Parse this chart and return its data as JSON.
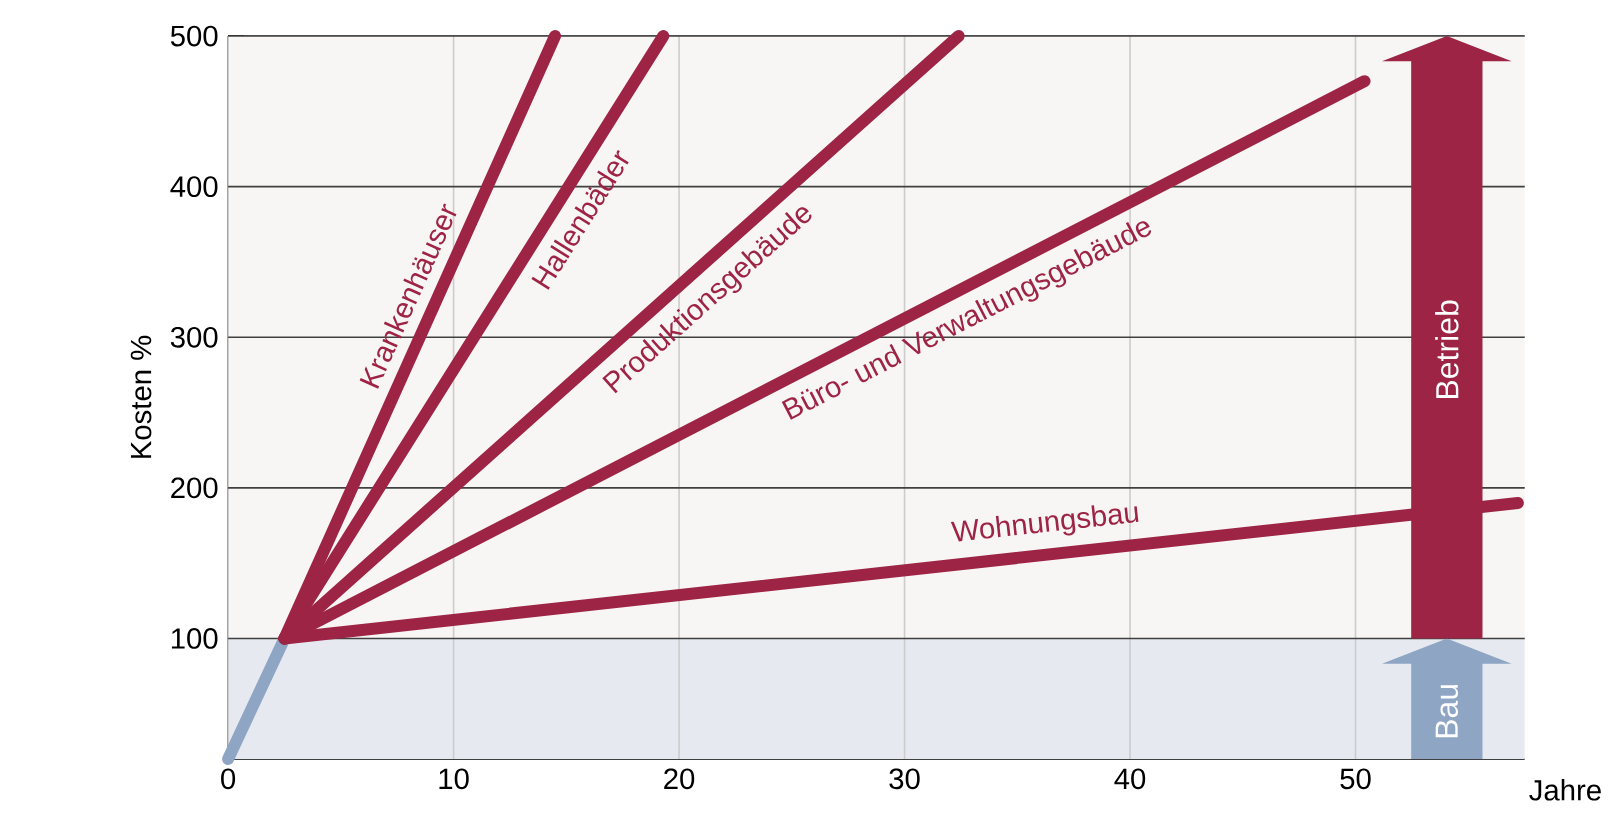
{
  "chart_data": {
    "type": "line",
    "xlabel": "Jahre",
    "ylabel": "Kosten %",
    "xlim": [
      0,
      57.5
    ],
    "ylim": [
      20,
      500
    ],
    "xticks": [
      0,
      10,
      20,
      30,
      40,
      50
    ],
    "yticks": [
      100,
      200,
      300,
      400,
      500
    ],
    "grid": true,
    "series": [
      {
        "color": "#8fa5c4",
        "x": [
          0,
          2.5
        ],
        "values": [
          20,
          100
        ]
      },
      {
        "name": "Krankenhäuser",
        "color": "#9e2445",
        "x": [
          2.5,
          14.5
        ],
        "values": [
          100,
          500
        ]
      },
      {
        "name": "Hallenbäder",
        "color": "#9e2445",
        "x": [
          2.5,
          19.3
        ],
        "values": [
          100,
          500
        ]
      },
      {
        "name": "Produktionsgebäude",
        "color": "#9e2445",
        "x": [
          2.5,
          32.4
        ],
        "values": [
          100,
          500
        ]
      },
      {
        "name": "Büro- und Verwaltungsgebäude",
        "color": "#9e2445",
        "x": [
          2.5,
          50.4
        ],
        "values": [
          100,
          470
        ]
      },
      {
        "name": "Wohnungsbau",
        "color": "#9e2445",
        "x": [
          2.5,
          57.2
        ],
        "values": [
          100,
          190
        ]
      }
    ],
    "bands": [
      {
        "axis": "y",
        "from": 20,
        "to": 100,
        "label": "Bau",
        "color": "#e6eaf0"
      },
      {
        "axis": "y",
        "from": 100,
        "to": 500,
        "label": "Betrieb",
        "color": "#f7f6f4"
      }
    ]
  }
}
